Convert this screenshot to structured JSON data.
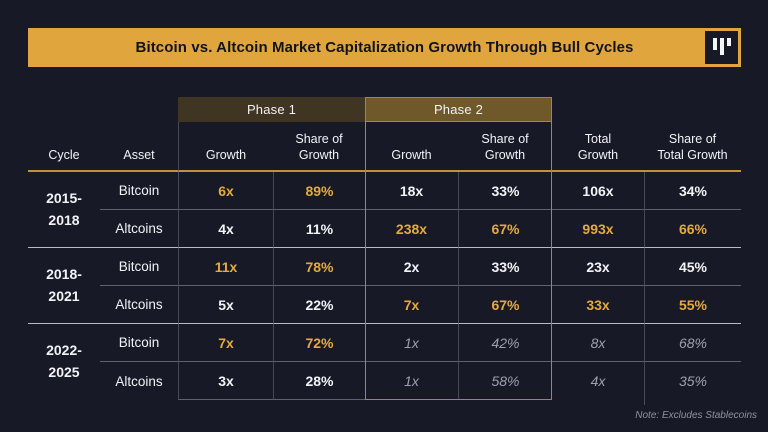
{
  "title_bar": {
    "title": "Bitcoin vs. Altcoin Market Capitalization Growth Through Bull Cycles",
    "logo": "three-bars-logo"
  },
  "table": {
    "phase_headers": [
      {
        "label": "Phase 1"
      },
      {
        "label": "Phase 2"
      }
    ],
    "column_headers": {
      "cycle": "Cycle",
      "asset": "Asset",
      "p1_growth": "Growth",
      "p1_share": "Share of\nGrowth",
      "p2_growth": "Growth",
      "p2_share": "Share of\nGrowth",
      "total_growth": "Total\nGrowth",
      "total_share": "Share of\nTotal Growth"
    },
    "groups": [
      {
        "cycle": "2015-\n2018",
        "rows": [
          {
            "asset": "Bitcoin",
            "cells": [
              {
                "v": "6x",
                "s": "gold"
              },
              {
                "v": "89%",
                "s": "gold"
              },
              {
                "v": "18x",
                "s": "white"
              },
              {
                "v": "33%",
                "s": "white"
              },
              {
                "v": "106x",
                "s": "white"
              },
              {
                "v": "34%",
                "s": "white"
              }
            ]
          },
          {
            "asset": "Altcoins",
            "cells": [
              {
                "v": "4x",
                "s": "white"
              },
              {
                "v": "11%",
                "s": "white"
              },
              {
                "v": "238x",
                "s": "gold"
              },
              {
                "v": "67%",
                "s": "gold"
              },
              {
                "v": "993x",
                "s": "gold"
              },
              {
                "v": "66%",
                "s": "gold"
              }
            ]
          }
        ]
      },
      {
        "cycle": "2018-\n2021",
        "rows": [
          {
            "asset": "Bitcoin",
            "cells": [
              {
                "v": "11x",
                "s": "gold"
              },
              {
                "v": "78%",
                "s": "gold"
              },
              {
                "v": "2x",
                "s": "white"
              },
              {
                "v": "33%",
                "s": "white"
              },
              {
                "v": "23x",
                "s": "white"
              },
              {
                "v": "45%",
                "s": "white"
              }
            ]
          },
          {
            "asset": "Altcoins",
            "cells": [
              {
                "v": "5x",
                "s": "white"
              },
              {
                "v": "22%",
                "s": "white"
              },
              {
                "v": "7x",
                "s": "gold"
              },
              {
                "v": "67%",
                "s": "gold"
              },
              {
                "v": "33x",
                "s": "gold"
              },
              {
                "v": "55%",
                "s": "gold"
              }
            ]
          }
        ]
      },
      {
        "cycle": "2022-\n2025",
        "rows": [
          {
            "asset": "Bitcoin",
            "cells": [
              {
                "v": "7x",
                "s": "gold"
              },
              {
                "v": "72%",
                "s": "gold"
              },
              {
                "v": "1x",
                "s": "proj"
              },
              {
                "v": "42%",
                "s": "proj"
              },
              {
                "v": "8x",
                "s": "proj"
              },
              {
                "v": "68%",
                "s": "proj"
              }
            ]
          },
          {
            "asset": "Altcoins",
            "cells": [
              {
                "v": "3x",
                "s": "white"
              },
              {
                "v": "28%",
                "s": "white"
              },
              {
                "v": "1x",
                "s": "proj"
              },
              {
                "v": "58%",
                "s": "proj"
              },
              {
                "v": "4x",
                "s": "proj"
              },
              {
                "v": "35%",
                "s": "proj"
              }
            ]
          }
        ]
      }
    ]
  },
  "footer": {
    "note": "Note: Excludes Stablecoins"
  },
  "colors": {
    "background": "#171a26",
    "accent_gold": "#e0a63d",
    "title_text": "#11141f",
    "gold_text": "#e5aa3f",
    "white_text": "#f2f3f5",
    "projection_gray": "#9da1ac",
    "phase1_bg": "#403522",
    "phase2_bg": "#6f5829",
    "gold_border": "#a9853e",
    "header_rule_gold": "#c0923c",
    "row_divider": "#5f636d",
    "group_divider": "#b9bbc1",
    "column_divider": "#454a58",
    "note_gray": "#8f929d"
  },
  "chart_data": {
    "type": "table",
    "title": "Bitcoin vs. Altcoin Market Capitalization Growth Through Bull Cycles",
    "column_groups": [
      "",
      "",
      "Phase 1",
      "Phase 1",
      "Phase 2",
      "Phase 2",
      "",
      ""
    ],
    "columns": [
      "Cycle",
      "Asset",
      "Growth",
      "Share of Growth",
      "Growth",
      "Share of Growth",
      "Total Growth",
      "Share of Total Growth"
    ],
    "rows": [
      [
        "2015-2018",
        "Bitcoin",
        "6x",
        "89%",
        "18x",
        "33%",
        "106x",
        "34%"
      ],
      [
        "2015-2018",
        "Altcoins",
        "4x",
        "11%",
        "238x",
        "67%",
        "993x",
        "66%"
      ],
      [
        "2018-2021",
        "Bitcoin",
        "11x",
        "78%",
        "2x",
        "33%",
        "23x",
        "45%"
      ],
      [
        "2018-2021",
        "Altcoins",
        "5x",
        "22%",
        "7x",
        "67%",
        "33x",
        "55%"
      ],
      [
        "2022-2025",
        "Bitcoin",
        "7x",
        "72%",
        "1x",
        "42%",
        "8x",
        "68%"
      ],
      [
        "2022-2025",
        "Altcoins",
        "3x",
        "28%",
        "1x",
        "58%",
        "4x",
        "35%"
      ]
    ],
    "highlighted_gold_cells": "winning asset per phase shown in gold; 2022-2025 Phase 2 and totals shown in italic gray (projected)",
    "note": "Note: Excludes Stablecoins"
  }
}
